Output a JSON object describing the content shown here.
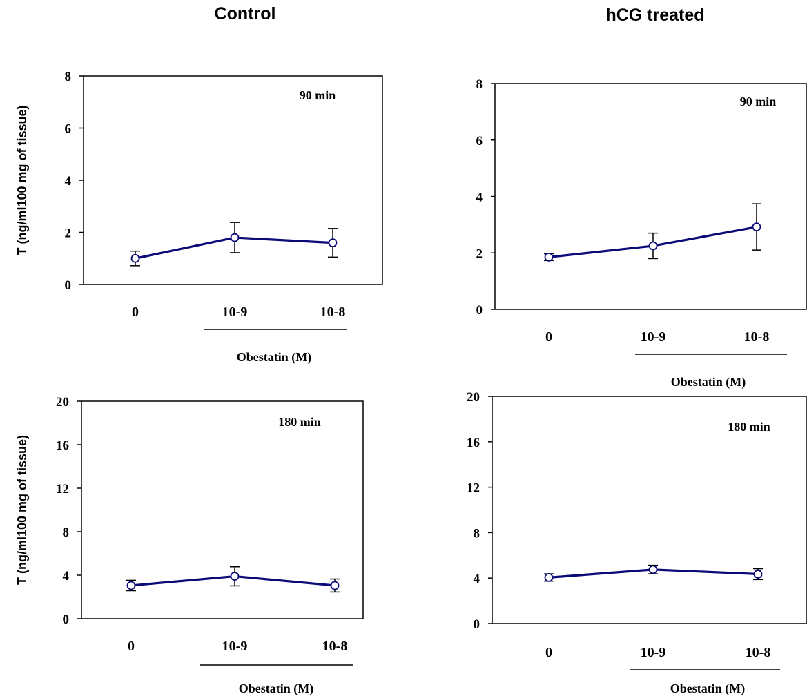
{
  "columns": [
    {
      "title": "Control"
    },
    {
      "title": "hCG treated"
    }
  ],
  "colors": {
    "line": "#0a0a78",
    "marker_fill": "#ffffff",
    "marker_stroke": "#0a0a78",
    "error_bar": "#000000",
    "axis": "#000000"
  },
  "chart_data": [
    {
      "type": "line",
      "group": "Control",
      "annotation": "90 min",
      "categories": [
        "0",
        "10-9",
        "10-8"
      ],
      "values": [
        1.0,
        1.8,
        1.6
      ],
      "error": [
        0.28,
        0.58,
        0.55
      ],
      "ylabel": "T (ng/ml100 mg of tissue)",
      "xlabel": "Obestatin (M)",
      "ylim": [
        0,
        8
      ],
      "yticks": [
        "0",
        "2",
        "4",
        "6",
        "8"
      ],
      "grid": false
    },
    {
      "type": "line",
      "group": "hCG treated",
      "annotation": "90 min",
      "categories": [
        "0",
        "10-9",
        "10-8"
      ],
      "values": [
        1.85,
        2.25,
        2.92
      ],
      "error": [
        0.12,
        0.45,
        0.82
      ],
      "ylabel": "",
      "xlabel": "Obestatin (M)",
      "ylim": [
        0,
        8
      ],
      "yticks": [
        "0",
        "2",
        "4",
        "6",
        "8"
      ],
      "grid": false
    },
    {
      "type": "line",
      "group": "Control",
      "annotation": "180 min",
      "categories": [
        "0",
        "10-9",
        "10-8"
      ],
      "values": [
        3.05,
        3.9,
        3.05
      ],
      "error": [
        0.48,
        0.88,
        0.6
      ],
      "ylabel": "T (ng/ml100 mg of tissue)",
      "xlabel": "Obestatin (M)",
      "ylim": [
        0,
        20
      ],
      "yticks": [
        "0",
        "4",
        "8",
        "12",
        "16",
        "20"
      ],
      "grid": false
    },
    {
      "type": "line",
      "group": "hCG treated",
      "annotation": "180 min",
      "categories": [
        "0",
        "10-9",
        "10-8"
      ],
      "values": [
        4.05,
        4.75,
        4.35
      ],
      "error": [
        0.32,
        0.38,
        0.48
      ],
      "ylabel": "",
      "xlabel": "Obestatin (M)",
      "ylim": [
        0,
        20
      ],
      "yticks": [
        "0",
        "4",
        "8",
        "12",
        "16",
        "20"
      ],
      "grid": false
    }
  ]
}
